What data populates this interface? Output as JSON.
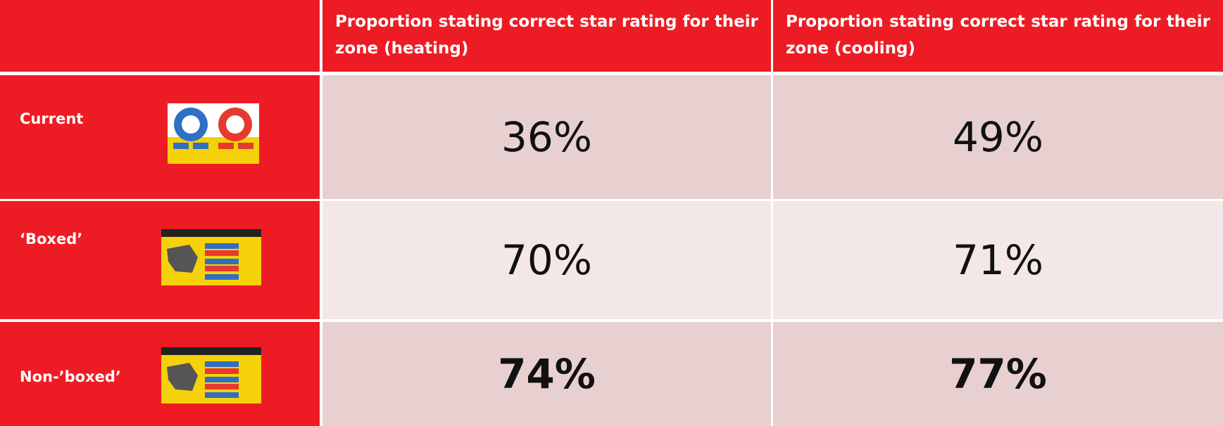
{
  "table": {
    "header": [
      "Proportion stating correct star rating for their zone (heating)",
      "Proportion stating correct star rating for their zone (cooling)"
    ],
    "rows": [
      [
        "Current",
        "36%",
        "49%"
      ],
      [
        "‘Boxed’",
        "70%",
        "71%"
      ],
      [
        "Non-’boxed’",
        "74%",
        "77%"
      ]
    ]
  }
}
